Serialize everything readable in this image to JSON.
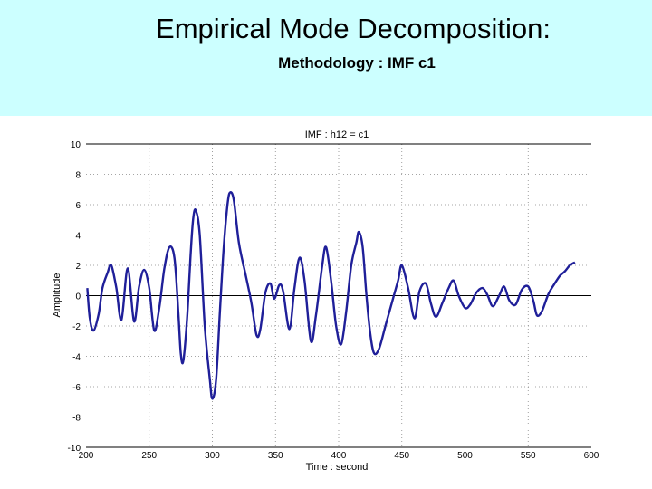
{
  "slide": {
    "title": "Empirical Mode Decomposition:",
    "subtitle": "Methodology : IMF c1",
    "header_color": "#ccffff"
  },
  "chart_data": {
    "type": "line",
    "title": "IMF : h12 = c1",
    "xlabel": "Time : second",
    "ylabel": "Amplitude",
    "xlim": [
      200,
      600
    ],
    "ylim": [
      -10,
      10
    ],
    "xticks": [
      200,
      250,
      300,
      350,
      400,
      450,
      500,
      550,
      600
    ],
    "yticks": [
      10,
      8,
      6,
      4,
      2,
      0,
      -2,
      -4,
      -6,
      -8,
      -10
    ],
    "grid": true,
    "zero_line": true,
    "line_color": "#1f1f99",
    "series": [
      {
        "points": [
          [
            201,
            0.5
          ],
          [
            203,
            -1.5
          ],
          [
            206,
            -2.3
          ],
          [
            210,
            -1.2
          ],
          [
            213,
            0.5
          ],
          [
            217,
            1.5
          ],
          [
            220,
            2.0
          ],
          [
            224,
            0.5
          ],
          [
            228,
            -1.6
          ],
          [
            233,
            1.8
          ],
          [
            238,
            -1.7
          ],
          [
            242,
            0.6
          ],
          [
            246,
            1.7
          ],
          [
            250,
            0.5
          ],
          [
            254,
            -2.3
          ],
          [
            258,
            -0.8
          ],
          [
            262,
            1.8
          ],
          [
            266,
            3.2
          ],
          [
            270,
            2.5
          ],
          [
            273,
            -1.0
          ],
          [
            275,
            -3.8
          ],
          [
            277,
            -4.3
          ],
          [
            280,
            -1.5
          ],
          [
            283,
            3.0
          ],
          [
            285,
            5.2
          ],
          [
            287,
            5.6
          ],
          [
            290,
            4.0
          ],
          [
            294,
            -2.0
          ],
          [
            298,
            -5.5
          ],
          [
            300,
            -6.8
          ],
          [
            303,
            -5.5
          ],
          [
            306,
            -1.0
          ],
          [
            309,
            3.2
          ],
          [
            312,
            6.0
          ],
          [
            314,
            6.8
          ],
          [
            317,
            6.3
          ],
          [
            321,
            3.5
          ],
          [
            326,
            1.5
          ],
          [
            331,
            -0.5
          ],
          [
            335,
            -2.6
          ],
          [
            338,
            -2.2
          ],
          [
            342,
            0.2
          ],
          [
            346,
            0.8
          ],
          [
            349,
            -0.2
          ],
          [
            353,
            0.7
          ],
          [
            356,
            0.3
          ],
          [
            361,
            -2.2
          ],
          [
            365,
            0.5
          ],
          [
            369,
            2.5
          ],
          [
            373,
            1.0
          ],
          [
            378,
            -3.0
          ],
          [
            382,
            -1.3
          ],
          [
            387,
            2.0
          ],
          [
            390,
            3.2
          ],
          [
            394,
            1.0
          ],
          [
            398,
            -2.0
          ],
          [
            402,
            -3.2
          ],
          [
            406,
            -1.0
          ],
          [
            410,
            2.0
          ],
          [
            414,
            3.5
          ],
          [
            416,
            4.2
          ],
          [
            419,
            3.2
          ],
          [
            422,
            0.0
          ],
          [
            425,
            -2.5
          ],
          [
            428,
            -3.8
          ],
          [
            432,
            -3.5
          ],
          [
            437,
            -2.0
          ],
          [
            442,
            -0.5
          ],
          [
            447,
            1.0
          ],
          [
            450,
            2.0
          ],
          [
            455,
            0.5
          ],
          [
            460,
            -1.5
          ],
          [
            464,
            0.3
          ],
          [
            469,
            0.8
          ],
          [
            473,
            -0.5
          ],
          [
            477,
            -1.4
          ],
          [
            482,
            -0.5
          ],
          [
            487,
            0.5
          ],
          [
            491,
            1.0
          ],
          [
            495,
            0.0
          ],
          [
            500,
            -0.8
          ],
          [
            504,
            -0.6
          ],
          [
            509,
            0.2
          ],
          [
            514,
            0.5
          ],
          [
            518,
            0.0
          ],
          [
            522,
            -0.7
          ],
          [
            527,
            0.0
          ],
          [
            531,
            0.6
          ],
          [
            535,
            -0.3
          ],
          [
            540,
            -0.6
          ],
          [
            545,
            0.4
          ],
          [
            550,
            0.6
          ],
          [
            554,
            -0.3
          ],
          [
            557,
            -1.3
          ],
          [
            561,
            -1.0
          ],
          [
            566,
            0.1
          ],
          [
            571,
            0.8
          ],
          [
            575,
            1.3
          ],
          [
            579,
            1.6
          ],
          [
            583,
            2.0
          ],
          [
            587,
            2.2
          ]
        ]
      }
    ]
  }
}
